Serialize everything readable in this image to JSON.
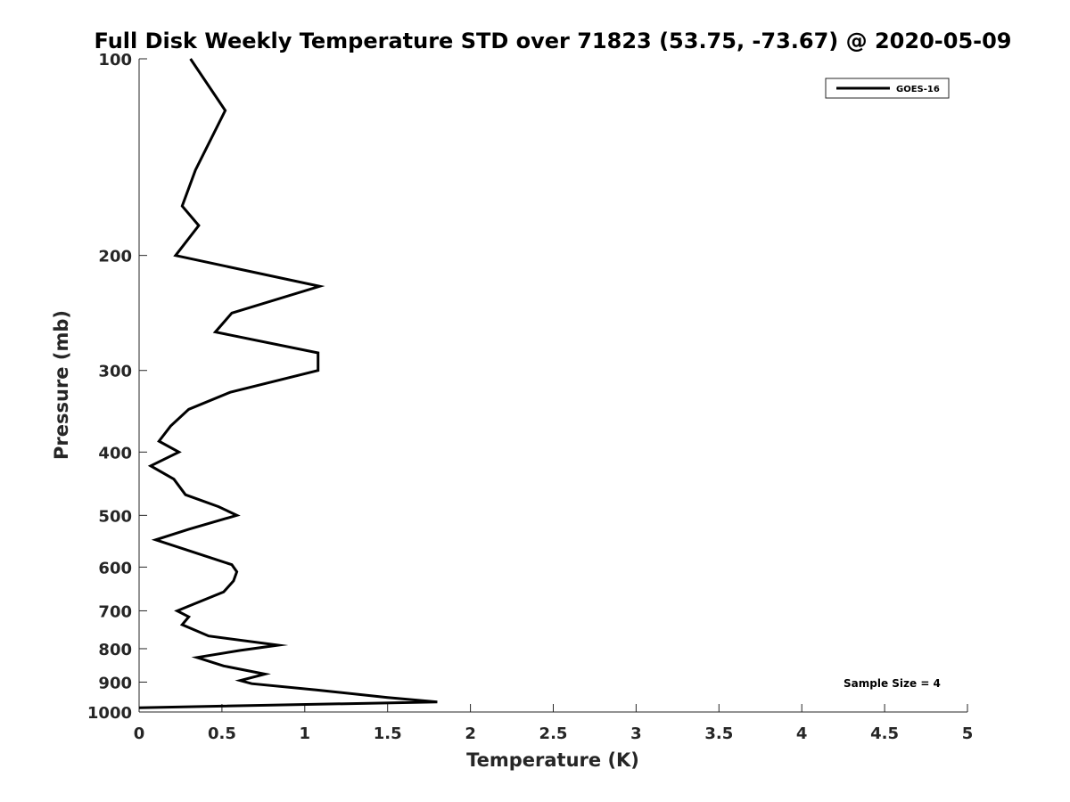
{
  "chart_data": {
    "type": "line",
    "title": "Full Disk Weekly Temperature STD over 71823 (53.75, -73.67) @ 2020-05-09",
    "xlabel": "Temperature (K)",
    "ylabel": "Pressure (mb)",
    "xlim": [
      0,
      5
    ],
    "ylim": [
      100,
      1000
    ],
    "y_scale": "log",
    "y_reversed": true,
    "grid": false,
    "legend_position": "top-right",
    "xticks": [
      0,
      0.5,
      1,
      1.5,
      2,
      2.5,
      3,
      3.5,
      4,
      4.5,
      5
    ],
    "xtick_labels": [
      "0",
      "0.5",
      "1",
      "1.5",
      "2",
      "2.5",
      "3",
      "3.5",
      "4",
      "4.5",
      "5"
    ],
    "yticks": [
      100,
      200,
      300,
      400,
      500,
      600,
      700,
      800,
      900,
      1000
    ],
    "ytick_labels": [
      "100",
      "200",
      "300",
      "400",
      "500",
      "600",
      "700",
      "800",
      "900",
      "1000"
    ],
    "annotation": "Sample Size = 4",
    "series": [
      {
        "name": "GOES-16",
        "color": "#000000",
        "x": [
          0.31,
          0.52,
          0.34,
          0.26,
          0.36,
          0.22,
          1.09,
          0.56,
          0.46,
          1.08,
          1.08,
          0.55,
          0.3,
          0.19,
          0.12,
          0.24,
          0.07,
          0.21,
          0.28,
          0.48,
          0.59,
          0.3,
          0.1,
          0.29,
          0.56,
          0.59,
          0.57,
          0.51,
          0.32,
          0.23,
          0.3,
          0.26,
          0.42,
          0.84,
          0.61,
          0.35,
          0.51,
          0.76,
          0.61,
          0.68,
          1.07,
          1.5,
          1.8,
          0.0
        ],
        "y": [
          100,
          120,
          148,
          168,
          180,
          200,
          223,
          245,
          262,
          282,
          300,
          324,
          344,
          365,
          385,
          400,
          420,
          440,
          465,
          485,
          500,
          525,
          545,
          565,
          595,
          610,
          630,
          655,
          685,
          700,
          715,
          735,
          765,
          790,
          805,
          825,
          850,
          875,
          895,
          905,
          925,
          950,
          965,
          985
        ]
      }
    ]
  }
}
